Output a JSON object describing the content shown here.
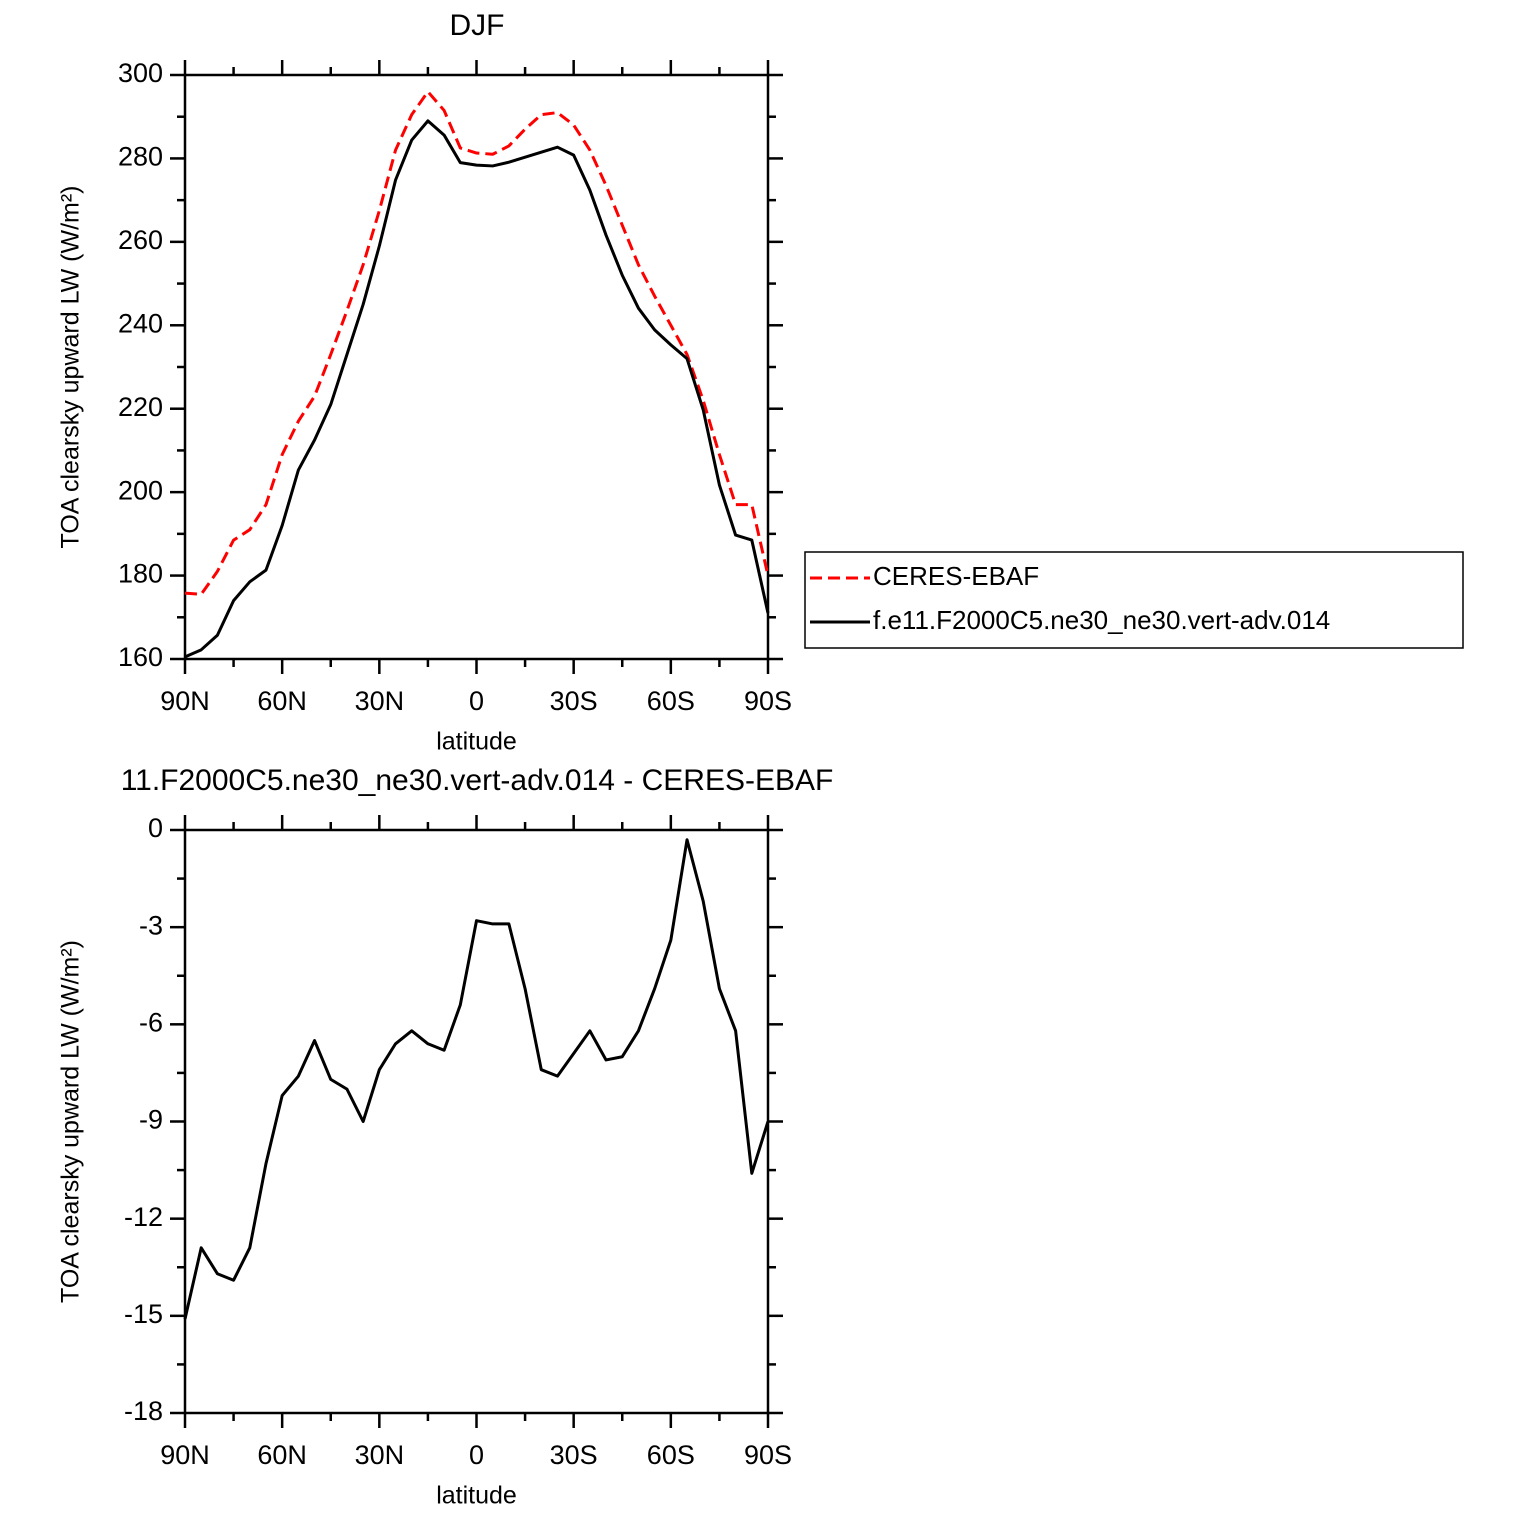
{
  "chart_data": [
    {
      "type": "line",
      "title": "DJF",
      "xlabel": "latitude",
      "ylabel": "TOA clearsky upward LW (W/m²)",
      "x": [
        90,
        85,
        80,
        75,
        70,
        65,
        60,
        55,
        50,
        45,
        40,
        35,
        30,
        25,
        20,
        15,
        10,
        5,
        0,
        -5,
        -10,
        -15,
        -20,
        -25,
        -30,
        -35,
        -40,
        -45,
        -50,
        -55,
        -60,
        -65,
        -70,
        -75,
        -80,
        -85,
        -90
      ],
      "series": [
        {
          "name": "CERES-EBAF",
          "color": "#ff0000",
          "style": "dashed",
          "values": [
            175.8,
            175.5,
            181,
            188.5,
            191,
            197,
            209,
            217,
            223,
            233,
            243.5,
            254.5,
            267.5,
            282,
            290.5,
            296,
            291.5,
            282.5,
            281.3,
            281,
            283,
            287,
            290.5,
            291,
            288,
            282,
            273.5,
            264,
            254.5,
            247,
            240,
            233,
            222,
            209,
            197,
            197,
            180
          ]
        },
        {
          "name": "f.e11.F2000C5.ne30_ne30.vert-adv.014",
          "color": "#000000",
          "style": "solid",
          "values": [
            160.5,
            162.2,
            165.7,
            174,
            178.5,
            181.3,
            192,
            205.3,
            212.5,
            221,
            233,
            245,
            259,
            274.8,
            284.4,
            289,
            285.6,
            279,
            278.4,
            278.2,
            279.1,
            280.3,
            281.5,
            282.7,
            280.8,
            272.4,
            261.6,
            252,
            244.1,
            238.9,
            235.3,
            232,
            219.7,
            201.7,
            189.7,
            188.5,
            171
          ]
        }
      ],
      "xlim": [
        90,
        -90
      ],
      "xticks": [
        {
          "value": 90,
          "label": "90N"
        },
        {
          "value": 60,
          "label": "60N"
        },
        {
          "value": 30,
          "label": "30N"
        },
        0,
        {
          "value": -30,
          "label": "30S"
        },
        {
          "value": -60,
          "label": "60S"
        },
        {
          "value": -90,
          "label": "90S"
        }
      ],
      "ylim": [
        160,
        300
      ],
      "yticks": [
        160,
        180,
        200,
        220,
        240,
        260,
        280,
        300
      ],
      "legend": "right"
    },
    {
      "type": "line",
      "title": "11.F2000C5.ne30_ne30.vert-adv.014 - CERES-EBAF",
      "xlabel": "latitude",
      "ylabel": "TOA clearsky upward LW (W/m²)",
      "x": [
        90,
        85,
        80,
        75,
        70,
        65,
        60,
        55,
        50,
        45,
        40,
        35,
        30,
        25,
        20,
        15,
        10,
        5,
        0,
        -5,
        -10,
        -15,
        -20,
        -25,
        -30,
        -35,
        -40,
        -45,
        -50,
        -55,
        -60,
        -65,
        -70,
        -75,
        -80,
        -85,
        -90
      ],
      "color": "#000000",
      "values": [
        -15.1,
        -12.9,
        -13.7,
        -13.9,
        -12.9,
        -10.3,
        -8.2,
        -7.6,
        -6.5,
        -7.7,
        -8.0,
        -9.0,
        -7.4,
        -6.6,
        -6.2,
        -6.6,
        -6.8,
        -5.4,
        -2.8,
        -2.9,
        -2.9,
        -4.9,
        -7.4,
        -7.6,
        -6.9,
        -6.2,
        -7.1,
        -7.0,
        -6.2,
        -4.9,
        -3.4,
        -0.3,
        -2.2,
        -4.9,
        -6.2,
        -10.6,
        -9.0
      ],
      "xlim": [
        90,
        -90
      ],
      "xticks": [
        {
          "value": 90,
          "label": "90N"
        },
        {
          "value": 60,
          "label": "60N"
        },
        {
          "value": 30,
          "label": "30N"
        },
        0,
        {
          "value": -30,
          "label": "30S"
        },
        {
          "value": -60,
          "label": "60S"
        },
        {
          "value": -90,
          "label": "90S"
        }
      ],
      "ylim": [
        -18,
        0
      ],
      "yticks": [
        -18,
        -15,
        -12,
        -9,
        -6,
        -3,
        0
      ]
    }
  ]
}
